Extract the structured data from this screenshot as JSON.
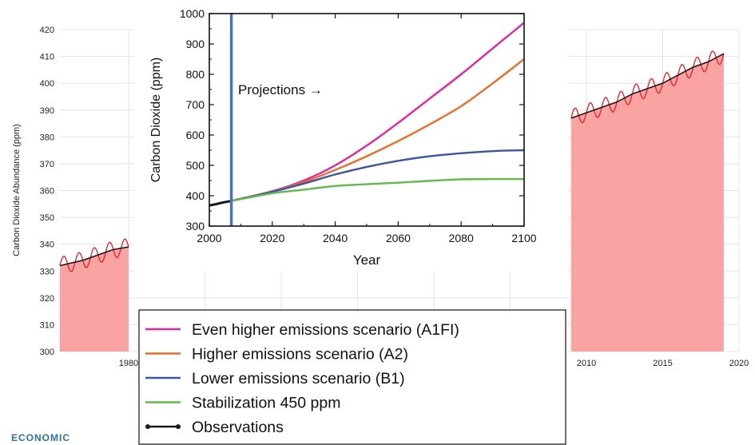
{
  "footer_text": "ECONOMIC",
  "colors": {
    "area_fill": "#f9a3a3",
    "observed_red": "#ee1c1c",
    "trend_black": "#1a1a1a",
    "a1fi": "#e8239b",
    "a2": "#f26b25",
    "b1": "#3a54a8",
    "stab": "#5dbb46",
    "projection_line": "#4472c4"
  },
  "chart_data": [
    {
      "type": "area",
      "ylabel": "Carbon Dioxide Abundance (ppm)",
      "ylim": [
        300,
        420
      ],
      "yticks": [
        "300",
        "310",
        "320",
        "330",
        "340",
        "350",
        "360",
        "370",
        "380",
        "390",
        "400",
        "410",
        "420"
      ],
      "xlim": [
        1975.5,
        2020
      ],
      "xticks": [
        "1980",
        "2010",
        "2015",
        "2020"
      ],
      "grid": true,
      "series": [
        {
          "x": [
            1975.5,
            1977,
            1978,
            1979,
            1980,
            2009,
            2010,
            2011,
            2012,
            2013,
            2014,
            2015,
            2016,
            2017,
            2018,
            2019
          ],
          "values": [
            332,
            334,
            336,
            338,
            339,
            387,
            389,
            391,
            393,
            396,
            398,
            400,
            403,
            406,
            408,
            411
          ]
        }
      ]
    },
    {
      "type": "line",
      "xlabel": "Year",
      "ylabel": "Carbon Dioxide (ppm)",
      "xlim": [
        2000,
        2100
      ],
      "ylim": [
        300,
        1000
      ],
      "xticks": [
        "2000",
        "2020",
        "2040",
        "2060",
        "2080",
        "2100"
      ],
      "yticks": [
        "300",
        "400",
        "500",
        "600",
        "700",
        "800",
        "900",
        "1000"
      ],
      "annotation": "Projections →",
      "projection_start_year": 2007,
      "x": [
        2007,
        2020,
        2030,
        2040,
        2050,
        2060,
        2070,
        2080,
        2090,
        2100
      ],
      "series": [
        {
          "name": "Even higher emissions scenario (A1FI)",
          "values": [
            383,
            415,
            450,
            500,
            565,
            640,
            720,
            800,
            885,
            970
          ]
        },
        {
          "name": "Higher emissions scenario (A2)",
          "values": [
            383,
            414,
            445,
            485,
            530,
            580,
            635,
            695,
            770,
            850
          ]
        },
        {
          "name": "Lower emissions scenario (B1)",
          "values": [
            383,
            413,
            440,
            470,
            495,
            515,
            530,
            540,
            547,
            550
          ]
        },
        {
          "name": "Stabilization 450 ppm",
          "values": [
            383,
            408,
            420,
            432,
            438,
            443,
            449,
            454,
            455,
            455
          ]
        }
      ],
      "observations": {
        "name": "Observations",
        "x": [
          2000,
          2002,
          2004,
          2006,
          2007
        ],
        "values": [
          368,
          372,
          377,
          381,
          383
        ]
      }
    }
  ]
}
